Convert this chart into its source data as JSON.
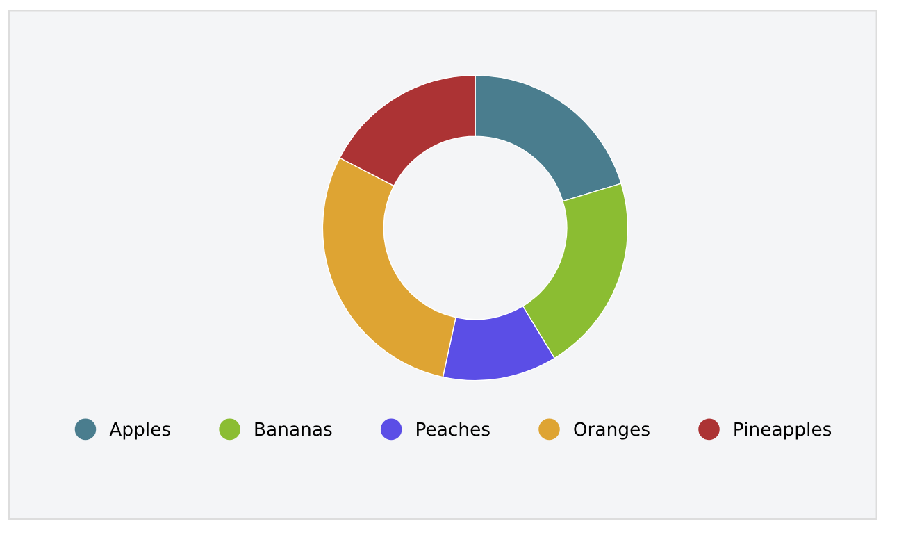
{
  "chart_data": {
    "type": "donut",
    "categories": [
      "Apples",
      "Bananas",
      "Peaches",
      "Oranges",
      "Pineapples"
    ],
    "values": [
      20.3,
      21.0,
      12.1,
      29.2,
      17.4
    ],
    "colors": [
      "#4a7d8e",
      "#8bbd32",
      "#5b4ee6",
      "#dea433",
      "#ac3334"
    ],
    "legend": "bottom"
  }
}
